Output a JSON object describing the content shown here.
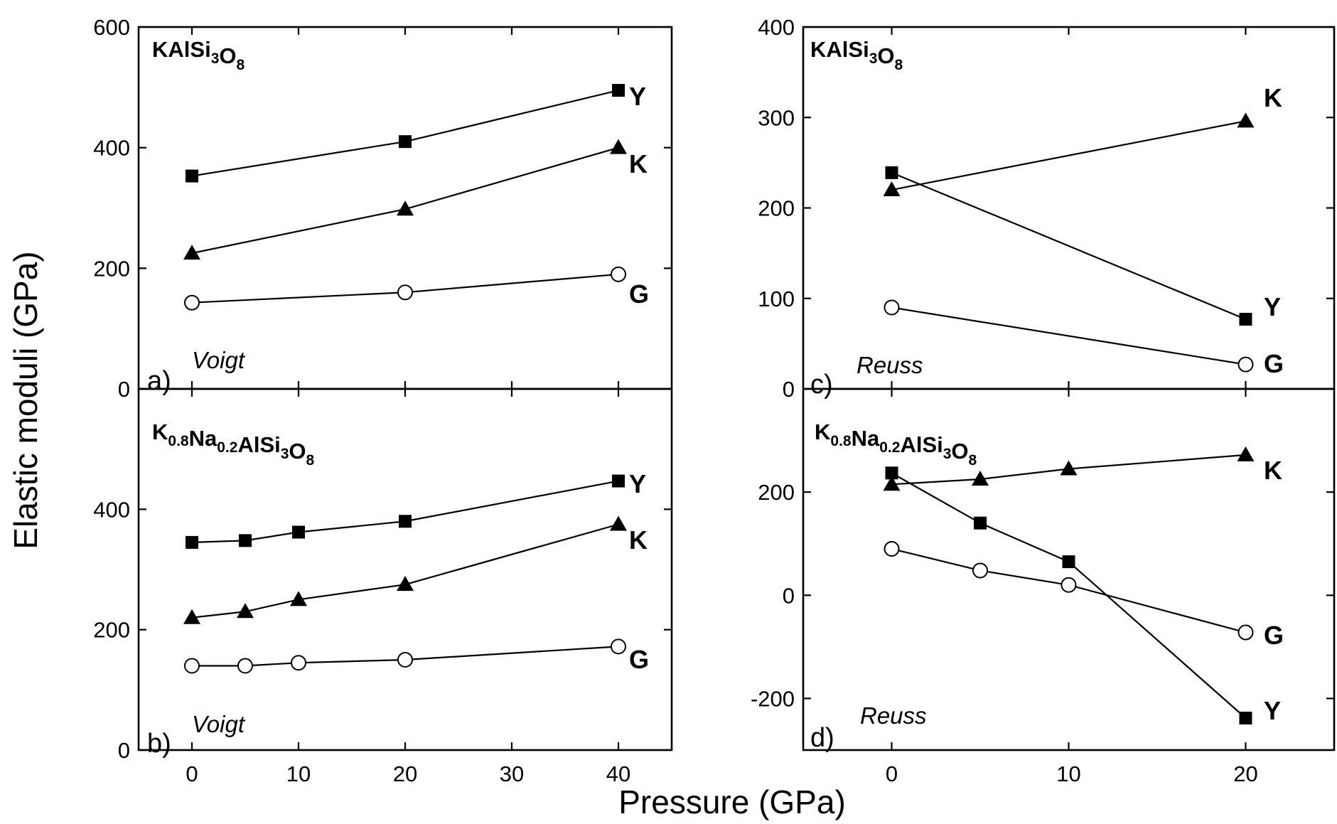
{
  "xlabel": "Pressure (GPa)",
  "ylabel": "Elastic moduli (GPa)",
  "chart_data": [
    {
      "id": "a",
      "type": "line",
      "panel_label": "a)",
      "compound": {
        "main": [
          "K",
          "AlSi",
          "O"
        ],
        "sub": [
          "",
          "3",
          "8"
        ]
      },
      "method": "Voigt",
      "xlim": [
        -5,
        45
      ],
      "ylim": [
        0,
        600
      ],
      "xticks": [
        0,
        10,
        20,
        30,
        40
      ],
      "yticks": [
        0,
        200,
        400,
        600
      ],
      "show_xtick_labels": false,
      "series": [
        {
          "name": "Y",
          "marker": "square",
          "x": [
            0,
            20,
            40
          ],
          "values": [
            353,
            410,
            495
          ]
        },
        {
          "name": "K",
          "marker": "triangle",
          "x": [
            0,
            20,
            40
          ],
          "values": [
            225,
            298,
            400
          ]
        },
        {
          "name": "G",
          "marker": "circle-open",
          "x": [
            0,
            20,
            40
          ],
          "values": [
            143,
            160,
            190
          ]
        }
      ]
    },
    {
      "id": "b",
      "type": "line",
      "panel_label": "b)",
      "compound": {
        "main": [
          "K",
          "Na",
          "AlSi",
          "O"
        ],
        "sub": [
          "0.8",
          "0.2",
          "3",
          "8"
        ]
      },
      "method": "Voigt",
      "xlim": [
        -5,
        45
      ],
      "ylim": [
        0,
        600
      ],
      "xticks": [
        0,
        10,
        20,
        30,
        40
      ],
      "yticks": [
        0,
        200,
        400
      ],
      "show_xtick_labels": true,
      "series": [
        {
          "name": "Y",
          "marker": "square",
          "x": [
            0,
            5,
            10,
            20,
            40
          ],
          "values": [
            345,
            348,
            362,
            380,
            447
          ]
        },
        {
          "name": "K",
          "marker": "triangle",
          "x": [
            0,
            5,
            10,
            20,
            40
          ],
          "values": [
            220,
            230,
            250,
            275,
            375
          ]
        },
        {
          "name": "G",
          "marker": "circle-open",
          "x": [
            0,
            5,
            10,
            20,
            40
          ],
          "values": [
            140,
            140,
            145,
            150,
            172
          ]
        }
      ]
    },
    {
      "id": "c",
      "type": "line",
      "panel_label": "c)",
      "compound": {
        "main": [
          "K",
          "AlSi",
          "O"
        ],
        "sub": [
          "",
          "3",
          "8"
        ]
      },
      "method": "Reuss",
      "xlim": [
        -5,
        25
      ],
      "ylim": [
        0,
        400
      ],
      "xticks": [
        0,
        10,
        20
      ],
      "yticks": [
        0,
        100,
        200,
        300,
        400
      ],
      "show_xtick_labels": false,
      "series": [
        {
          "name": "K",
          "marker": "triangle",
          "x": [
            0,
            20
          ],
          "values": [
            220,
            296
          ]
        },
        {
          "name": "Y",
          "marker": "square",
          "x": [
            0,
            20
          ],
          "values": [
            239,
            77
          ]
        },
        {
          "name": "G",
          "marker": "circle-open",
          "x": [
            0,
            20
          ],
          "values": [
            90,
            27
          ]
        }
      ]
    },
    {
      "id": "d",
      "type": "line",
      "panel_label": "d)",
      "compound": {
        "main": [
          "K",
          "Na",
          "AlSi",
          "O"
        ],
        "sub": [
          "0.8",
          "0.2",
          "3",
          "8"
        ]
      },
      "method": "Reuss",
      "xlim": [
        -5,
        25
      ],
      "ylim": [
        -300,
        400
      ],
      "xticks": [
        0,
        10,
        20
      ],
      "yticks": [
        -200,
        0,
        200
      ],
      "show_xtick_labels": true,
      "series": [
        {
          "name": "K",
          "marker": "triangle",
          "x": [
            0,
            5,
            10,
            20
          ],
          "values": [
            215,
            225,
            245,
            272
          ]
        },
        {
          "name": "Y",
          "marker": "square",
          "x": [
            0,
            5,
            10,
            20
          ],
          "values": [
            237,
            140,
            65,
            -238
          ]
        },
        {
          "name": "G",
          "marker": "circle-open",
          "x": [
            0,
            5,
            10,
            20
          ],
          "values": [
            90,
            48,
            20,
            -72
          ]
        }
      ]
    }
  ]
}
